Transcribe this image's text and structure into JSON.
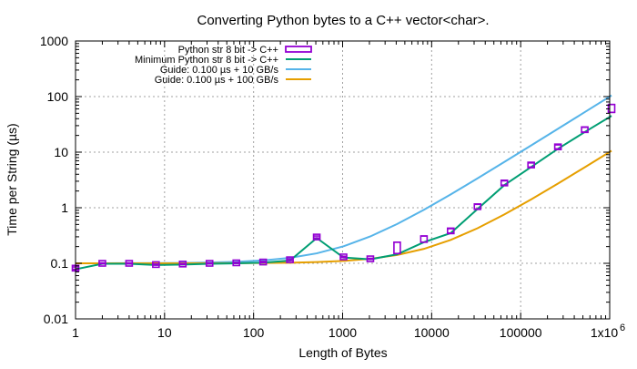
{
  "chart_data": {
    "type": "line",
    "title": "Converting Python bytes to a C++ vector<char>.",
    "xlabel": "Length of Bytes",
    "ylabel": "Time per String (µs)",
    "xscale": "log",
    "yscale": "log",
    "xlim": [
      1,
      1000000
    ],
    "ylim": [
      0.01,
      1000
    ],
    "grid": true,
    "legend_position": "top-left",
    "x_tick_labels": [
      "1",
      "10",
      "100",
      "1000",
      "10000",
      "100000",
      "1x10^6"
    ],
    "y_tick_labels": [
      "0.01",
      "0.1",
      "1",
      "10",
      "100",
      "1000"
    ],
    "x_ticks": [
      1,
      10,
      100,
      1000,
      10000,
      100000,
      1000000
    ],
    "y_ticks": [
      0.01,
      0.1,
      1,
      10,
      100,
      1000
    ],
    "series": [
      {
        "name": "Python str 8 bit -> C++",
        "kind": "errorbox",
        "color": "#9400d3",
        "x": [
          1,
          2,
          4,
          8,
          16,
          32,
          64,
          128,
          256,
          512,
          1024,
          2048,
          4096,
          8192,
          16384,
          32768,
          65536,
          131072,
          262144,
          524288,
          1048576
        ],
        "y": [
          0.082,
          0.1,
          0.1,
          0.095,
          0.097,
          0.1,
          0.102,
          0.105,
          0.115,
          0.295,
          0.13,
          0.12,
          0.17,
          0.27,
          0.38,
          1.05,
          2.8,
          5.8,
          12.5,
          25,
          60
        ],
        "y_low": [
          0.078,
          0.098,
          0.098,
          0.093,
          0.095,
          0.098,
          0.1,
          0.103,
          0.112,
          0.285,
          0.127,
          0.118,
          0.15,
          0.24,
          0.35,
          0.95,
          2.55,
          5.4,
          11.5,
          23,
          52
        ],
        "y_high": [
          0.086,
          0.102,
          0.102,
          0.097,
          0.099,
          0.102,
          0.104,
          0.108,
          0.12,
          0.31,
          0.134,
          0.123,
          0.24,
          0.31,
          0.42,
          1.15,
          3.05,
          6.4,
          13.5,
          28,
          72
        ]
      },
      {
        "name": "Minimum Python str 8 bit -> C++",
        "kind": "line",
        "color": "#009e73",
        "x": [
          1,
          2,
          4,
          8,
          16,
          32,
          64,
          128,
          256,
          512,
          1024,
          2048,
          4096,
          8192,
          16384,
          32768,
          65536,
          131072,
          262144,
          524288,
          1048576
        ],
        "y": [
          0.078,
          0.098,
          0.098,
          0.093,
          0.095,
          0.098,
          0.1,
          0.103,
          0.112,
          0.285,
          0.127,
          0.118,
          0.145,
          0.24,
          0.35,
          0.95,
          2.55,
          5.4,
          11.5,
          23,
          45
        ]
      },
      {
        "name": "Guide: 0.100 µs + 10 GB/s",
        "kind": "line",
        "color": "#56b4e9",
        "x": [
          1,
          2,
          4,
          8,
          16,
          32,
          64,
          128,
          256,
          512,
          1024,
          2048,
          4096,
          8192,
          16384,
          32768,
          65536,
          131072,
          262144,
          524288,
          1048576
        ],
        "y": [
          0.1001,
          0.1002,
          0.1004,
          0.1008,
          0.1016,
          0.1032,
          0.1064,
          0.1128,
          0.1256,
          0.1512,
          0.2024,
          0.3048,
          0.5096,
          0.9192,
          1.738,
          3.377,
          6.654,
          13.21,
          26.31,
          52.53,
          104.96
        ]
      },
      {
        "name": "Guide: 0.100 µs + 100 GB/s",
        "kind": "line",
        "color": "#e69f00",
        "x": [
          1,
          2,
          4,
          8,
          16,
          32,
          64,
          128,
          256,
          512,
          1024,
          2048,
          4096,
          8192,
          16384,
          32768,
          65536,
          131072,
          262144,
          524288,
          1048576
        ],
        "y": [
          0.1,
          0.1,
          0.1,
          0.1001,
          0.1002,
          0.1003,
          0.1006,
          0.1013,
          0.1026,
          0.1051,
          0.1102,
          0.1205,
          0.141,
          0.1819,
          0.2638,
          0.4277,
          0.7554,
          1.411,
          2.721,
          5.343,
          10.586
        ]
      }
    ]
  }
}
